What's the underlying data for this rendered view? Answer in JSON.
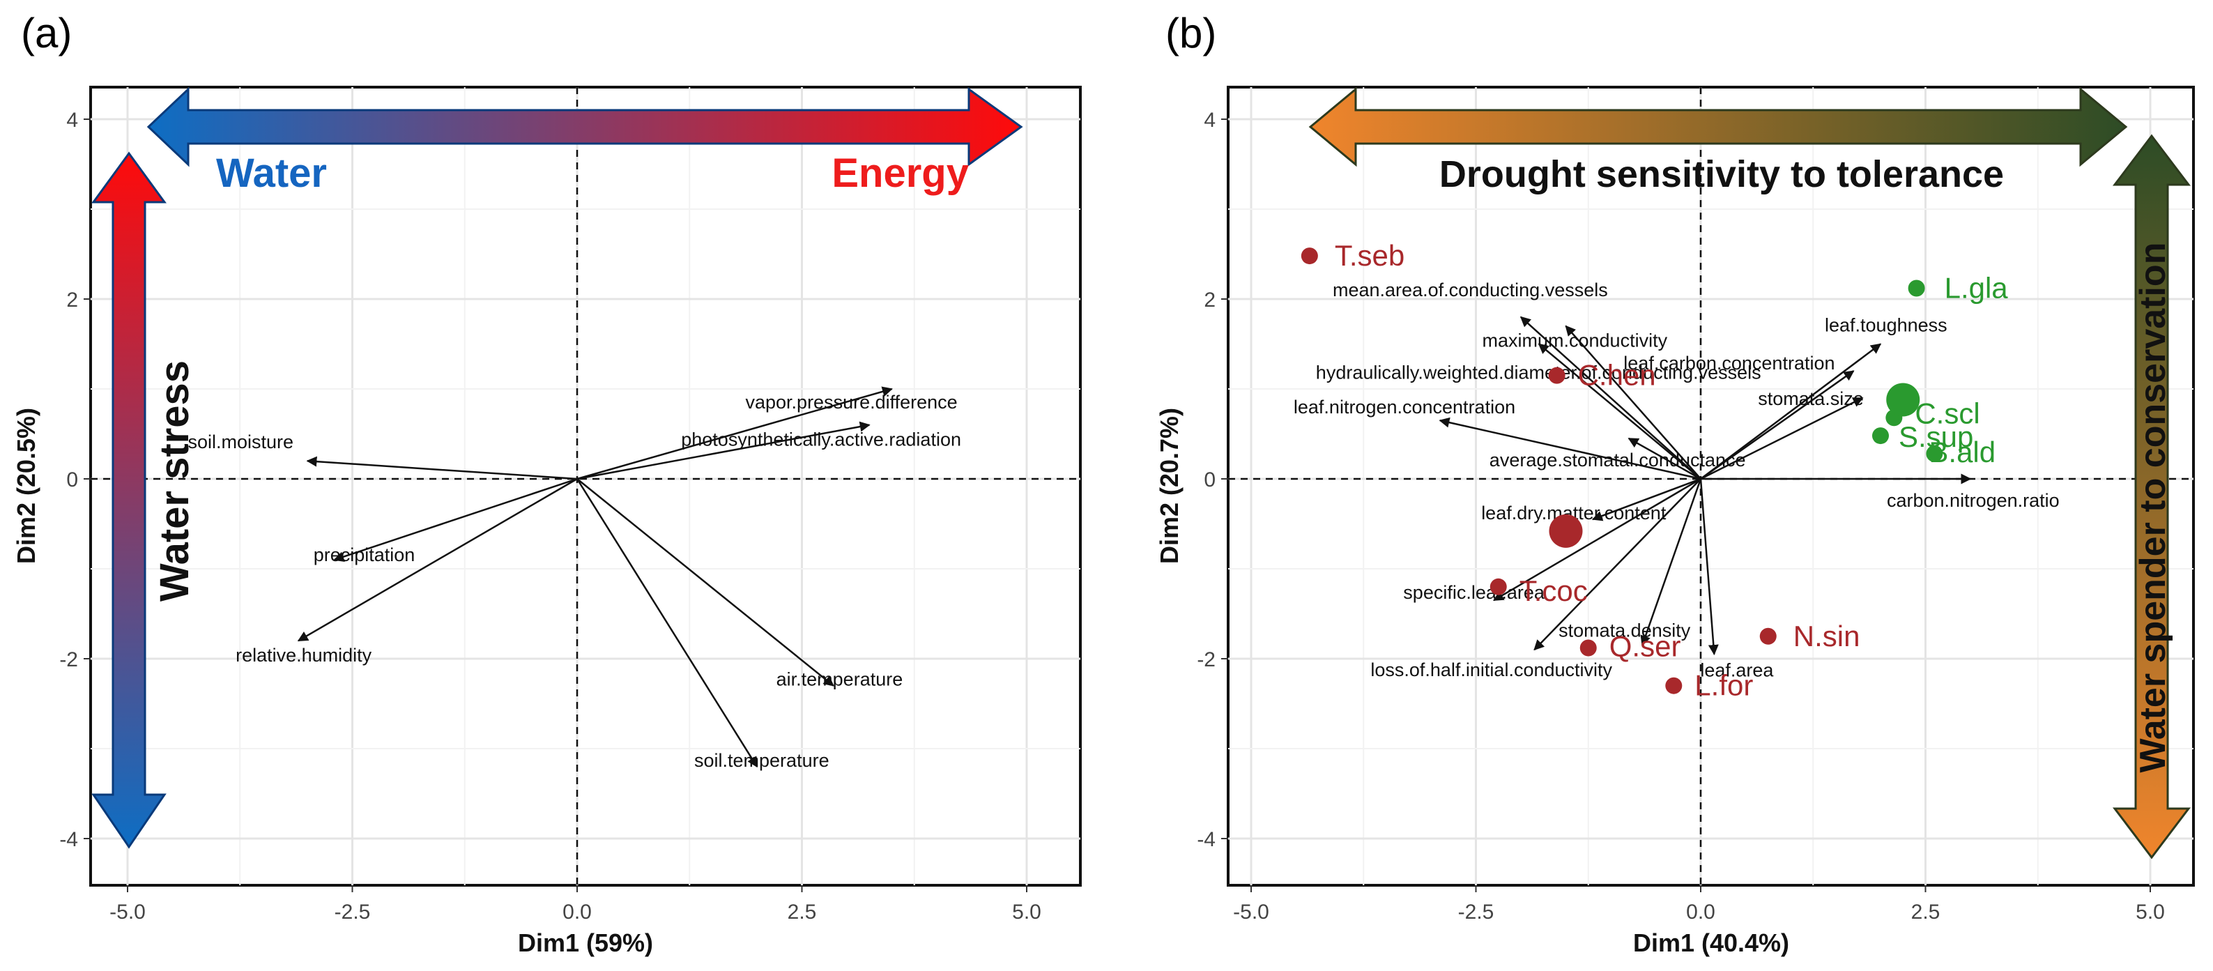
{
  "chart_data": [
    {
      "type": "scatter",
      "panel": "(a)",
      "title": "",
      "xlabel": "Dim1 (59%)",
      "ylabel": "Dim2 (20.5%)",
      "xlim": [
        -5.5,
        5.5
      ],
      "ylim": [
        -4.4,
        4.4
      ],
      "xticks": [
        -5.0,
        -2.5,
        0.0,
        2.5,
        5.0
      ],
      "xtick_labels": [
        "-5.0",
        "-2.5",
        "0.0",
        "2.5",
        "5.0"
      ],
      "yticks": [
        -4,
        -2,
        0,
        2,
        4
      ],
      "ytick_labels": [
        "-4",
        "-2",
        "0",
        "2",
        "4"
      ],
      "grid": true,
      "vectors": [
        {
          "name": "soil.moisture",
          "x": -3.0,
          "y": 0.2
        },
        {
          "name": "precipitation",
          "x": -2.7,
          "y": -0.9
        },
        {
          "name": "relative.humidity",
          "x": -3.1,
          "y": -1.8
        },
        {
          "name": "vapor.pressure.difference",
          "x": 3.5,
          "y": 1.0
        },
        {
          "name": "photosynthetically.active.radiation",
          "x": 3.25,
          "y": 0.6
        },
        {
          "name": "air.temperature",
          "x": 2.85,
          "y": -2.3
        },
        {
          "name": "soil.temperature",
          "x": 2.0,
          "y": -3.2
        }
      ],
      "annotations": [
        {
          "text": "Water",
          "color": "#1565c0"
        },
        {
          "text": "Energy",
          "color": "#ee1c1c"
        },
        {
          "text": "Water stress",
          "color": "#111111"
        }
      ],
      "gradient_colors": {
        "water": "#0d6ec4",
        "energy": "#ff0a0a"
      }
    },
    {
      "type": "scatter",
      "panel": "(b)",
      "title": "",
      "xlabel": "Dim1 (40.4%)",
      "ylabel": "Dim2 (20.7%)",
      "xlim": [
        -5.5,
        5.5
      ],
      "ylim": [
        -4.4,
        4.4
      ],
      "xticks": [
        -5.0,
        -2.5,
        0.0,
        2.5,
        5.0
      ],
      "xtick_labels": [
        "-5.0",
        "-2.5",
        "0.0",
        "2.5",
        "5.0"
      ],
      "yticks": [
        -4,
        -2,
        0,
        2,
        4
      ],
      "ytick_labels": [
        "-4",
        "-2",
        "0",
        "2",
        "4"
      ],
      "grid": true,
      "vectors": [
        {
          "name": "mean.area.of.conducting.vessels",
          "x": -2.0,
          "y": 1.8
        },
        {
          "name": "maximum.conductivity",
          "x": -1.5,
          "y": 1.7
        },
        {
          "name": "hydraulically.weighted.diameter.of.conducting.vessels",
          "x": -1.8,
          "y": 1.5
        },
        {
          "name": "leaf.nitrogen.concentration",
          "x": -2.9,
          "y": 0.65
        },
        {
          "name": "average.stomatal.conductance",
          "x": -0.8,
          "y": 0.45
        },
        {
          "name": "leaf.toughness",
          "x": 2.0,
          "y": 1.5
        },
        {
          "name": "leaf.carbon.concentration",
          "x": 1.7,
          "y": 1.2
        },
        {
          "name": "stomata.size",
          "x": 1.8,
          "y": 0.9
        },
        {
          "name": "carbon.nitrogen.ratio",
          "x": 3.0,
          "y": 0.0
        },
        {
          "name": "leaf.dry.matter.content",
          "x": -1.2,
          "y": -0.45
        },
        {
          "name": "specific.leaf.area",
          "x": -2.3,
          "y": -1.35
        },
        {
          "name": "stomata.density",
          "x": -0.65,
          "y": -1.85
        },
        {
          "name": "loss.of.half.initial.conductivity",
          "x": -1.85,
          "y": -1.9
        },
        {
          "name": "leaf.area",
          "x": 0.15,
          "y": -1.95
        }
      ],
      "points": [
        {
          "label": "T.seb",
          "x": -4.35,
          "y": 2.48,
          "group": "sensitive",
          "size": "small"
        },
        {
          "label": "C.hen",
          "x": -1.6,
          "y": 1.15,
          "group": "sensitive",
          "size": "small"
        },
        {
          "label": "T.coc",
          "x": -2.25,
          "y": -1.2,
          "group": "sensitive",
          "size": "small"
        },
        {
          "label": "",
          "x": -1.5,
          "y": -0.58,
          "group": "sensitive",
          "size": "large"
        },
        {
          "label": "Q.ser",
          "x": -1.25,
          "y": -1.88,
          "group": "sensitive",
          "size": "small"
        },
        {
          "label": "N.sin",
          "x": 0.75,
          "y": -1.75,
          "group": "sensitive",
          "size": "small"
        },
        {
          "label": "L.for",
          "x": -0.3,
          "y": -2.3,
          "group": "sensitive",
          "size": "small"
        },
        {
          "label": "L.gla",
          "x": 2.4,
          "y": 2.12,
          "group": "tolerant",
          "size": "small"
        },
        {
          "label": "C.scl",
          "x": 2.15,
          "y": 0.68,
          "group": "tolerant",
          "size": "small"
        },
        {
          "label": "S.sup",
          "x": 2.0,
          "y": 0.48,
          "group": "tolerant",
          "size": "small"
        },
        {
          "label": "B.ald",
          "x": 2.6,
          "y": 0.28,
          "group": "tolerant",
          "size": "small"
        },
        {
          "label": "",
          "x": 2.25,
          "y": 0.88,
          "group": "tolerant",
          "size": "large"
        }
      ],
      "group_colors": {
        "sensitive": "#a8282b",
        "tolerant": "#2a9a2f"
      },
      "annotations": [
        {
          "text": "Drought sensitivity to tolerance",
          "color": "#111111"
        },
        {
          "text": "Water spender to conservation",
          "color": "#111111"
        }
      ],
      "gradient_colors": {
        "spender": "#f0852c",
        "conservation": "#2d4c26"
      }
    }
  ]
}
